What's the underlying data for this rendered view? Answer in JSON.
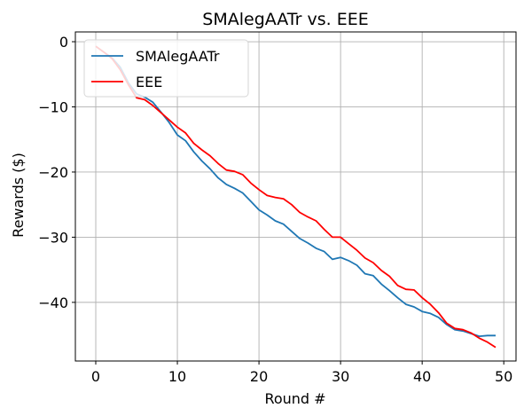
{
  "chart_data": {
    "type": "line",
    "title": "SMAlegAATr vs. EEE",
    "xlabel": "Round #",
    "ylabel": "Rewards ($)",
    "xlim": [
      -2.5,
      51.5
    ],
    "ylim": [
      -49,
      1.5
    ],
    "xticks": [
      0,
      10,
      20,
      30,
      40,
      50
    ],
    "xtick_labels": [
      "0",
      "10",
      "20",
      "30",
      "40",
      "50"
    ],
    "yticks": [
      0,
      -10,
      -20,
      -30,
      -40
    ],
    "ytick_labels": [
      "0",
      "−10",
      "−20",
      "−30",
      "−40"
    ],
    "grid": true,
    "legend_position": "top-left",
    "series": [
      {
        "name": "SMAlegAATr",
        "color": "#1f77b4",
        "x": [
          0,
          1,
          2,
          3,
          4,
          5,
          6,
          7,
          8,
          9,
          10,
          11,
          12,
          13,
          14,
          15,
          16,
          17,
          18,
          19,
          20,
          21,
          22,
          23,
          24,
          25,
          26,
          27,
          28,
          29,
          30,
          31,
          32,
          33,
          34,
          35,
          36,
          37,
          38,
          39,
          40,
          41,
          42,
          43,
          44,
          45,
          46,
          47,
          48,
          49
        ],
        "y": [
          -0.7,
          -1.6,
          -2.5,
          -3.9,
          -6.3,
          -8.0,
          -8.5,
          -9.3,
          -10.8,
          -12.4,
          -14.3,
          -15.2,
          -16.9,
          -18.3,
          -19.5,
          -20.9,
          -21.9,
          -22.5,
          -23.2,
          -24.5,
          -25.8,
          -26.6,
          -27.5,
          -28.0,
          -29.1,
          -30.2,
          -30.9,
          -31.7,
          -32.2,
          -33.4,
          -33.1,
          -33.6,
          -34.3,
          -35.6,
          -35.9,
          -37.2,
          -38.2,
          -39.3,
          -40.3,
          -40.7,
          -41.4,
          -41.7,
          -42.3,
          -43.4,
          -44.2,
          -44.4,
          -44.8,
          -45.2,
          -45.1,
          -45.1
        ]
      },
      {
        "name": "EEE",
        "color": "#ff0000",
        "x": [
          0,
          1,
          2,
          3,
          4,
          5,
          6,
          7,
          8,
          9,
          10,
          11,
          12,
          13,
          14,
          15,
          16,
          17,
          18,
          19,
          20,
          21,
          22,
          23,
          24,
          25,
          26,
          27,
          28,
          29,
          30,
          31,
          32,
          33,
          34,
          35,
          36,
          37,
          38,
          39,
          40,
          41,
          42,
          43,
          44,
          45,
          46,
          47,
          48,
          49
        ],
        "y": [
          -0.7,
          -1.6,
          -2.6,
          -4.3,
          -6.6,
          -8.6,
          -8.9,
          -9.8,
          -10.9,
          -12.0,
          -13.1,
          -14.0,
          -15.6,
          -16.6,
          -17.5,
          -18.7,
          -19.7,
          -19.9,
          -20.4,
          -21.7,
          -22.7,
          -23.6,
          -23.9,
          -24.1,
          -25.0,
          -26.2,
          -26.9,
          -27.5,
          -28.8,
          -30.0,
          -30.0,
          -31.0,
          -32.0,
          -33.2,
          -33.9,
          -35.1,
          -36.0,
          -37.4,
          -38.0,
          -38.1,
          -39.3,
          -40.3,
          -41.6,
          -43.2,
          -44.0,
          -44.2,
          -44.7,
          -45.5,
          -46.1,
          -46.9
        ]
      }
    ]
  }
}
